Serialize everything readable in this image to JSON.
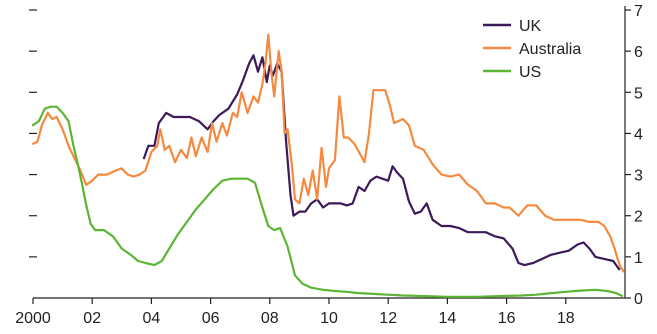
{
  "chart_data": {
    "type": "line",
    "title": "",
    "xlabel": "",
    "ylabel": "",
    "xlim": [
      2000,
      2020
    ],
    "ylim": [
      0,
      7
    ],
    "x_ticks": [
      {
        "value": 2000,
        "label": "2000"
      },
      {
        "value": 2002,
        "label": "02"
      },
      {
        "value": 2004,
        "label": "04"
      },
      {
        "value": 2006,
        "label": "06"
      },
      {
        "value": 2008,
        "label": "08"
      },
      {
        "value": 2010,
        "label": "10"
      },
      {
        "value": 2012,
        "label": "12"
      },
      {
        "value": 2014,
        "label": "14"
      },
      {
        "value": 2016,
        "label": "16"
      },
      {
        "value": 2018,
        "label": "18"
      }
    ],
    "y_ticks": [
      {
        "value": 0,
        "label": "0"
      },
      {
        "value": 1,
        "label": "1"
      },
      {
        "value": 2,
        "label": "2"
      },
      {
        "value": 3,
        "label": "3"
      },
      {
        "value": 4,
        "label": "4"
      },
      {
        "value": 5,
        "label": "5"
      },
      {
        "value": 6,
        "label": "6"
      },
      {
        "value": 7,
        "label": "7"
      }
    ],
    "grid": false,
    "legend_position": "top-right",
    "series": [
      {
        "name": "UK",
        "color": "#3b1a5a",
        "points": [
          [
            2003.75,
            3.4
          ],
          [
            2003.9,
            3.7
          ],
          [
            2004.1,
            3.7
          ],
          [
            2004.25,
            4.25
          ],
          [
            2004.5,
            4.5
          ],
          [
            2004.75,
            4.4
          ],
          [
            2005.0,
            4.4
          ],
          [
            2005.3,
            4.4
          ],
          [
            2005.6,
            4.3
          ],
          [
            2005.9,
            4.1
          ],
          [
            2006.1,
            4.3
          ],
          [
            2006.3,
            4.45
          ],
          [
            2006.6,
            4.6
          ],
          [
            2006.9,
            4.95
          ],
          [
            2007.1,
            5.3
          ],
          [
            2007.3,
            5.7
          ],
          [
            2007.45,
            5.9
          ],
          [
            2007.6,
            5.5
          ],
          [
            2007.75,
            5.85
          ],
          [
            2007.9,
            5.25
          ],
          [
            2008.0,
            5.65
          ],
          [
            2008.1,
            5.4
          ],
          [
            2008.25,
            5.7
          ],
          [
            2008.4,
            5.5
          ],
          [
            2008.55,
            3.8
          ],
          [
            2008.7,
            2.5
          ],
          [
            2008.8,
            2.0
          ],
          [
            2009.0,
            2.1
          ],
          [
            2009.2,
            2.1
          ],
          [
            2009.4,
            2.3
          ],
          [
            2009.6,
            2.4
          ],
          [
            2009.8,
            2.2
          ],
          [
            2010.0,
            2.3
          ],
          [
            2010.2,
            2.3
          ],
          [
            2010.4,
            2.3
          ],
          [
            2010.6,
            2.25
          ],
          [
            2010.8,
            2.3
          ],
          [
            2011.0,
            2.7
          ],
          [
            2011.2,
            2.6
          ],
          [
            2011.4,
            2.85
          ],
          [
            2011.6,
            2.95
          ],
          [
            2011.8,
            2.9
          ],
          [
            2012.0,
            2.85
          ],
          [
            2012.15,
            3.2
          ],
          [
            2012.3,
            3.05
          ],
          [
            2012.5,
            2.9
          ],
          [
            2012.7,
            2.35
          ],
          [
            2012.9,
            2.05
          ],
          [
            2013.1,
            2.1
          ],
          [
            2013.3,
            2.3
          ],
          [
            2013.5,
            1.9
          ],
          [
            2013.8,
            1.75
          ],
          [
            2014.1,
            1.75
          ],
          [
            2014.4,
            1.7
          ],
          [
            2014.7,
            1.6
          ],
          [
            2015.0,
            1.6
          ],
          [
            2015.3,
            1.6
          ],
          [
            2015.6,
            1.5
          ],
          [
            2015.9,
            1.45
          ],
          [
            2016.2,
            1.2
          ],
          [
            2016.4,
            0.85
          ],
          [
            2016.6,
            0.8
          ],
          [
            2016.9,
            0.85
          ],
          [
            2017.2,
            0.95
          ],
          [
            2017.5,
            1.05
          ],
          [
            2017.8,
            1.1
          ],
          [
            2018.1,
            1.15
          ],
          [
            2018.4,
            1.3
          ],
          [
            2018.6,
            1.35
          ],
          [
            2018.8,
            1.2
          ],
          [
            2019.0,
            1.0
          ],
          [
            2019.3,
            0.95
          ],
          [
            2019.6,
            0.9
          ],
          [
            2019.8,
            0.7
          ]
        ]
      },
      {
        "name": "Australia",
        "color": "#f5893f",
        "points": [
          [
            2000.0,
            3.75
          ],
          [
            2000.15,
            3.8
          ],
          [
            2000.3,
            4.2
          ],
          [
            2000.5,
            4.5
          ],
          [
            2000.65,
            4.35
          ],
          [
            2000.8,
            4.4
          ],
          [
            2001.0,
            4.1
          ],
          [
            2001.2,
            3.7
          ],
          [
            2001.4,
            3.4
          ],
          [
            2001.6,
            3.1
          ],
          [
            2001.8,
            2.75
          ],
          [
            2002.0,
            2.85
          ],
          [
            2002.2,
            3.0
          ],
          [
            2002.5,
            3.0
          ],
          [
            2002.8,
            3.1
          ],
          [
            2003.0,
            3.15
          ],
          [
            2003.2,
            3.0
          ],
          [
            2003.4,
            2.95
          ],
          [
            2003.6,
            3.0
          ],
          [
            2003.8,
            3.1
          ],
          [
            2004.0,
            3.55
          ],
          [
            2004.2,
            3.7
          ],
          [
            2004.3,
            4.1
          ],
          [
            2004.45,
            3.6
          ],
          [
            2004.6,
            3.7
          ],
          [
            2004.8,
            3.3
          ],
          [
            2005.0,
            3.6
          ],
          [
            2005.2,
            3.4
          ],
          [
            2005.35,
            3.9
          ],
          [
            2005.5,
            3.45
          ],
          [
            2005.7,
            3.9
          ],
          [
            2005.9,
            3.55
          ],
          [
            2006.05,
            4.25
          ],
          [
            2006.2,
            3.8
          ],
          [
            2006.4,
            4.25
          ],
          [
            2006.55,
            3.95
          ],
          [
            2006.75,
            4.5
          ],
          [
            2006.9,
            4.4
          ],
          [
            2007.05,
            5.0
          ],
          [
            2007.25,
            4.5
          ],
          [
            2007.45,
            4.9
          ],
          [
            2007.6,
            4.75
          ],
          [
            2007.75,
            5.2
          ],
          [
            2007.85,
            5.7
          ],
          [
            2007.95,
            6.4
          ],
          [
            2008.05,
            5.5
          ],
          [
            2008.15,
            4.9
          ],
          [
            2008.3,
            6.0
          ],
          [
            2008.4,
            5.5
          ],
          [
            2008.5,
            4.0
          ],
          [
            2008.6,
            4.1
          ],
          [
            2008.75,
            3.2
          ],
          [
            2008.85,
            2.4
          ],
          [
            2009.0,
            2.3
          ],
          [
            2009.15,
            2.9
          ],
          [
            2009.3,
            2.5
          ],
          [
            2009.45,
            3.1
          ],
          [
            2009.6,
            2.4
          ],
          [
            2009.75,
            3.65
          ],
          [
            2009.9,
            2.7
          ],
          [
            2010.0,
            3.15
          ],
          [
            2010.2,
            3.35
          ],
          [
            2010.35,
            4.9
          ],
          [
            2010.5,
            3.9
          ],
          [
            2010.65,
            3.9
          ],
          [
            2010.85,
            3.75
          ],
          [
            2011.05,
            3.5
          ],
          [
            2011.2,
            3.3
          ],
          [
            2011.35,
            4.0
          ],
          [
            2011.5,
            5.05
          ],
          [
            2011.9,
            5.05
          ],
          [
            2012.05,
            4.7
          ],
          [
            2012.2,
            4.25
          ],
          [
            2012.5,
            4.35
          ],
          [
            2012.7,
            4.2
          ],
          [
            2012.9,
            3.7
          ],
          [
            2013.2,
            3.6
          ],
          [
            2013.5,
            3.25
          ],
          [
            2013.8,
            3.0
          ],
          [
            2014.1,
            2.95
          ],
          [
            2014.4,
            3.0
          ],
          [
            2014.7,
            2.75
          ],
          [
            2015.0,
            2.6
          ],
          [
            2015.3,
            2.3
          ],
          [
            2015.6,
            2.3
          ],
          [
            2015.9,
            2.2
          ],
          [
            2016.1,
            2.2
          ],
          [
            2016.4,
            2.0
          ],
          [
            2016.7,
            2.25
          ],
          [
            2017.0,
            2.25
          ],
          [
            2017.3,
            2.0
          ],
          [
            2017.6,
            1.9
          ],
          [
            2017.9,
            1.9
          ],
          [
            2018.2,
            1.9
          ],
          [
            2018.5,
            1.9
          ],
          [
            2018.8,
            1.85
          ],
          [
            2019.1,
            1.85
          ],
          [
            2019.3,
            1.75
          ],
          [
            2019.5,
            1.5
          ],
          [
            2019.65,
            1.2
          ],
          [
            2019.75,
            0.95
          ],
          [
            2019.85,
            0.75
          ],
          [
            2019.95,
            0.65
          ]
        ]
      },
      {
        "name": "US",
        "color": "#5cb534",
        "points": [
          [
            2000.0,
            4.2
          ],
          [
            2000.2,
            4.3
          ],
          [
            2000.4,
            4.6
          ],
          [
            2000.6,
            4.65
          ],
          [
            2000.8,
            4.65
          ],
          [
            2001.0,
            4.5
          ],
          [
            2001.2,
            4.3
          ],
          [
            2001.35,
            3.75
          ],
          [
            2001.5,
            3.3
          ],
          [
            2001.65,
            2.8
          ],
          [
            2001.8,
            2.25
          ],
          [
            2001.95,
            1.8
          ],
          [
            2002.1,
            1.65
          ],
          [
            2002.4,
            1.65
          ],
          [
            2002.7,
            1.5
          ],
          [
            2003.0,
            1.2
          ],
          [
            2003.3,
            1.05
          ],
          [
            2003.55,
            0.9
          ],
          [
            2003.8,
            0.85
          ],
          [
            2004.1,
            0.8
          ],
          [
            2004.35,
            0.9
          ],
          [
            2004.6,
            1.2
          ],
          [
            2004.9,
            1.55
          ],
          [
            2005.2,
            1.85
          ],
          [
            2005.5,
            2.15
          ],
          [
            2005.8,
            2.4
          ],
          [
            2006.1,
            2.65
          ],
          [
            2006.4,
            2.85
          ],
          [
            2006.7,
            2.9
          ],
          [
            2007.0,
            2.9
          ],
          [
            2007.25,
            2.9
          ],
          [
            2007.5,
            2.8
          ],
          [
            2007.75,
            2.2
          ],
          [
            2007.95,
            1.75
          ],
          [
            2008.15,
            1.65
          ],
          [
            2008.35,
            1.7
          ],
          [
            2008.6,
            1.25
          ],
          [
            2008.85,
            0.55
          ],
          [
            2009.1,
            0.35
          ],
          [
            2009.4,
            0.25
          ],
          [
            2009.8,
            0.2
          ],
          [
            2010.2,
            0.17
          ],
          [
            2010.6,
            0.15
          ],
          [
            2011.0,
            0.12
          ],
          [
            2011.5,
            0.1
          ],
          [
            2012.0,
            0.08
          ],
          [
            2012.5,
            0.06
          ],
          [
            2013.0,
            0.05
          ],
          [
            2013.5,
            0.04
          ],
          [
            2014.0,
            0.03
          ],
          [
            2014.5,
            0.03
          ],
          [
            2015.0,
            0.03
          ],
          [
            2015.5,
            0.04
          ],
          [
            2016.0,
            0.05
          ],
          [
            2016.5,
            0.06
          ],
          [
            2017.0,
            0.08
          ],
          [
            2017.5,
            0.12
          ],
          [
            2018.0,
            0.15
          ],
          [
            2018.5,
            0.18
          ],
          [
            2019.0,
            0.2
          ],
          [
            2019.4,
            0.17
          ],
          [
            2019.7,
            0.12
          ],
          [
            2019.9,
            0.05
          ]
        ]
      }
    ]
  }
}
